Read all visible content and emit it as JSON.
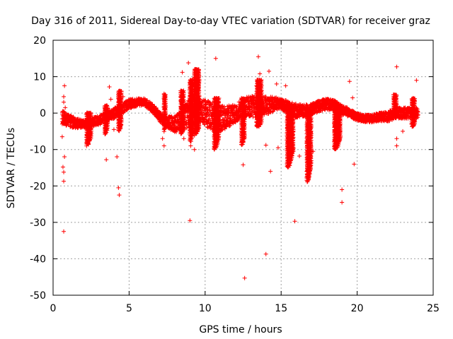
{
  "chart_data": {
    "type": "scatter",
    "title": "Day 316 of 2011, Sidereal Day-to-day VTEC variation (SDTVAR) for receiver graz",
    "xlabel": "GPS time / hours",
    "ylabel": "SDTVAR / TECUs",
    "xlim": [
      0,
      25
    ],
    "ylim": [
      -50,
      20
    ],
    "xticks": [
      0,
      5,
      10,
      15,
      20,
      25
    ],
    "yticks": [
      -50,
      -40,
      -30,
      -20,
      -10,
      0,
      10,
      20
    ],
    "xtick_labels": [
      "0",
      "5",
      "10",
      "15",
      "20",
      "25"
    ],
    "ytick_labels": [
      "-50",
      "-40",
      "-30",
      "-20",
      "-10",
      "0",
      "10",
      "20"
    ],
    "grid": true,
    "marker": "+",
    "series": [
      {
        "name": "SDTVAR",
        "color": "#ff0000",
        "band_center": [
          [
            0.6,
            -1.0
          ],
          [
            1.0,
            -2.0
          ],
          [
            1.5,
            -2.8
          ],
          [
            2.0,
            -3.0
          ],
          [
            2.5,
            -2.5
          ],
          [
            3.0,
            -2.0
          ],
          [
            3.5,
            -1.0
          ],
          [
            4.0,
            0.0
          ],
          [
            4.5,
            1.0
          ],
          [
            5.0,
            2.5
          ],
          [
            5.5,
            3.0
          ],
          [
            6.0,
            3.0
          ],
          [
            6.5,
            1.5
          ],
          [
            7.0,
            -1.0
          ],
          [
            7.5,
            -2.5
          ],
          [
            8.0,
            -3.0
          ],
          [
            8.5,
            -2.0
          ],
          [
            9.0,
            0.0
          ],
          [
            9.5,
            1.0
          ],
          [
            10.0,
            0.0
          ],
          [
            10.5,
            -1.0
          ],
          [
            11.0,
            -1.5
          ],
          [
            11.5,
            -1.0
          ],
          [
            12.0,
            0.0
          ],
          [
            12.5,
            1.5
          ],
          [
            13.0,
            2.0
          ],
          [
            13.5,
            1.5
          ],
          [
            14.0,
            2.0
          ],
          [
            14.5,
            2.5
          ],
          [
            15.0,
            2.5
          ],
          [
            15.5,
            1.5
          ],
          [
            16.0,
            0.5
          ],
          [
            16.5,
            0.5
          ],
          [
            17.0,
            1.0
          ],
          [
            17.5,
            2.0
          ],
          [
            18.0,
            2.5
          ],
          [
            18.5,
            2.0
          ],
          [
            19.0,
            1.0
          ],
          [
            19.5,
            0.0
          ],
          [
            20.0,
            -1.0
          ],
          [
            20.5,
            -1.5
          ],
          [
            21.0,
            -1.5
          ],
          [
            21.5,
            -1.0
          ],
          [
            22.0,
            -1.0
          ],
          [
            22.5,
            0.0
          ],
          [
            23.0,
            0.0
          ],
          [
            23.5,
            0.0
          ],
          [
            24.0,
            0.0
          ]
        ],
        "band_halfwidth": [
          [
            0.6,
            2.0
          ],
          [
            2.0,
            1.0
          ],
          [
            4.0,
            1.5
          ],
          [
            6.0,
            1.0
          ],
          [
            7.5,
            1.5
          ],
          [
            8.5,
            3.0
          ],
          [
            9.0,
            4.0
          ],
          [
            9.5,
            3.0
          ],
          [
            10.5,
            4.0
          ],
          [
            12.0,
            2.5
          ],
          [
            13.5,
            3.0
          ],
          [
            15.0,
            1.5
          ],
          [
            16.0,
            2.0
          ],
          [
            17.0,
            1.5
          ],
          [
            18.5,
            1.5
          ],
          [
            20.0,
            1.0
          ],
          [
            21.0,
            1.0
          ],
          [
            22.5,
            1.5
          ],
          [
            24.0,
            1.5
          ]
        ],
        "spikes": [
          {
            "x": 2.2,
            "x_end": 2.5,
            "top": 0,
            "bottom": -9
          },
          {
            "x": 3.4,
            "x_end": 3.6,
            "top": 2,
            "bottom": -6
          },
          {
            "x": 4.3,
            "x_end": 4.5,
            "top": 6,
            "bottom": -5
          },
          {
            "x": 7.3,
            "x_end": 7.4,
            "top": 5,
            "bottom": -5
          },
          {
            "x": 8.4,
            "x_end": 8.6,
            "top": 6,
            "bottom": -6
          },
          {
            "x": 9.0,
            "x_end": 9.2,
            "top": 9,
            "bottom": -8
          },
          {
            "x": 9.3,
            "x_end": 9.6,
            "top": 12,
            "bottom": -6
          },
          {
            "x": 10.6,
            "x_end": 10.9,
            "top": 4,
            "bottom": -10
          },
          {
            "x": 12.4,
            "x_end": 12.6,
            "top": 4,
            "bottom": -9
          },
          {
            "x": 13.4,
            "x_end": 13.7,
            "top": 9,
            "bottom": -4
          },
          {
            "x": 15.4,
            "x_end": 15.8,
            "top": 1,
            "bottom": -15
          },
          {
            "x": 16.7,
            "x_end": 17.0,
            "top": 1,
            "bottom": -19
          },
          {
            "x": 18.5,
            "x_end": 18.9,
            "top": 1,
            "bottom": -10
          },
          {
            "x": 22.4,
            "x_end": 22.6,
            "top": 5,
            "bottom": 0
          },
          {
            "x": 23.6,
            "x_end": 23.8,
            "top": 4,
            "bottom": -4
          }
        ],
        "outliers": [
          [
            0.7,
            -32.5
          ],
          [
            0.7,
            -18.7
          ],
          [
            0.7,
            -16.2
          ],
          [
            0.65,
            -14.8
          ],
          [
            0.75,
            -12.0
          ],
          [
            0.6,
            -6.5
          ],
          [
            0.75,
            7.5
          ],
          [
            0.7,
            4.5
          ],
          [
            0.7,
            3.0
          ],
          [
            0.8,
            1.5
          ],
          [
            3.5,
            -12.8
          ],
          [
            3.7,
            7.2
          ],
          [
            3.8,
            3.8
          ],
          [
            4.0,
            -4.5
          ],
          [
            4.2,
            -12.0
          ],
          [
            4.3,
            -20.5
          ],
          [
            4.35,
            -22.5
          ],
          [
            4.5,
            6.0
          ],
          [
            4.6,
            4.5
          ],
          [
            7.2,
            -7.0
          ],
          [
            7.3,
            -9.0
          ],
          [
            7.3,
            5.3
          ],
          [
            8.5,
            -3.2
          ],
          [
            8.6,
            -7.0
          ],
          [
            8.5,
            11.2
          ],
          [
            8.9,
            13.8
          ],
          [
            9.0,
            -29.5
          ],
          [
            9.05,
            -9.0
          ],
          [
            9.3,
            -10.0
          ],
          [
            10.7,
            15.0
          ],
          [
            12.5,
            -14.2
          ],
          [
            12.6,
            -45.3
          ],
          [
            13.5,
            15.5
          ],
          [
            13.6,
            10.8
          ],
          [
            14.0,
            -38.7
          ],
          [
            14.0,
            -8.8
          ],
          [
            14.2,
            11.5
          ],
          [
            14.3,
            -16.0
          ],
          [
            14.7,
            8.0
          ],
          [
            14.8,
            -9.5
          ],
          [
            15.3,
            7.5
          ],
          [
            15.9,
            -29.7
          ],
          [
            15.9,
            0.5
          ],
          [
            16.2,
            -11.8
          ],
          [
            17.1,
            -10.5
          ],
          [
            19.0,
            -21.0
          ],
          [
            19.0,
            -24.5
          ],
          [
            19.5,
            8.7
          ],
          [
            19.7,
            4.2
          ],
          [
            19.8,
            -14.0
          ],
          [
            22.6,
            12.7
          ],
          [
            22.6,
            -7.0
          ],
          [
            22.6,
            -9.0
          ],
          [
            23.0,
            -5.0
          ],
          [
            23.9,
            9.0
          ]
        ]
      }
    ]
  }
}
